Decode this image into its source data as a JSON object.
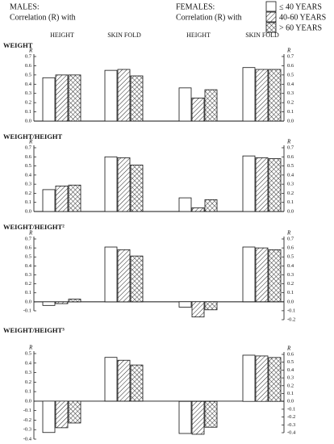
{
  "header": {
    "males": "MALES:",
    "males_sub": "Correlation (R) with",
    "females": "FEMALES:",
    "females_sub": "Correlation (R) with"
  },
  "legend": [
    {
      "name": "≤ 40 YEARS",
      "pattern": "none"
    },
    {
      "name": "40-60 YEARS",
      "pattern": "hatch"
    },
    {
      "name": "> 60 YEARS",
      "pattern": "cross"
    }
  ],
  "categories": {
    "males": [
      "HEIGHT",
      "SKIN FOLD"
    ],
    "females": [
      "HEIGHT",
      "SKIN FOLD"
    ]
  },
  "axis_label": "R",
  "chart_data": [
    {
      "type": "bar",
      "title": "WEIGHT",
      "ylim": [
        0,
        0.7
      ],
      "yticks": [
        {
          "value": 0,
          "label": "0.0"
        },
        0.1,
        0.2,
        0.3,
        0.4,
        0.5,
        0.6,
        0.7
      ],
      "y2lim": [
        0,
        0.7
      ],
      "y2ticks": [
        {
          "value": 0,
          "label": "0.0"
        },
        0.1,
        0.2,
        0.3,
        0.4,
        0.5,
        0.6,
        0.7
      ],
      "males": {
        "series": [
          {
            "values": [
              0.47,
              0.55
            ]
          },
          {
            "values": [
              0.5,
              0.56
            ]
          },
          {
            "values": [
              0.5,
              0.49
            ]
          }
        ]
      },
      "females": {
        "axis": "y2",
        "series": [
          {
            "values": [
              0.36,
              0.58
            ]
          },
          {
            "values": [
              0.25,
              0.56
            ]
          },
          {
            "values": [
              0.34,
              0.56
            ]
          }
        ]
      }
    },
    {
      "type": "bar",
      "title": "WEIGHT/HEIGHT",
      "ylim": [
        0,
        0.7
      ],
      "yticks": [
        {
          "value": 0,
          "label": "0.0"
        },
        0.1,
        0.2,
        0.3,
        0.4,
        0.5,
        0.6,
        0.7
      ],
      "y2lim": [
        0,
        0.7
      ],
      "y2ticks": [
        {
          "value": 0,
          "label": "0.0"
        },
        0.1,
        0.2,
        0.3,
        0.4,
        0.5,
        0.6,
        0.7
      ],
      "males": {
        "series": [
          {
            "values": [
              0.24,
              0.6
            ]
          },
          {
            "values": [
              0.28,
              0.59
            ]
          },
          {
            "values": [
              0.29,
              0.51
            ]
          }
        ]
      },
      "females": {
        "axis": "y2",
        "series": [
          {
            "values": [
              0.15,
              0.61
            ]
          },
          {
            "values": [
              0.04,
              0.59
            ]
          },
          {
            "values": [
              0.13,
              0.58
            ]
          }
        ]
      }
    },
    {
      "type": "bar",
      "title": "WEIGHT/HEIGHT²",
      "ylim": [
        -0.1,
        0.7
      ],
      "yticks": [
        -0.1,
        {
          "value": 0,
          "label": "0.0"
        },
        0.1,
        0.2,
        0.3,
        0.4,
        0.5,
        0.6,
        0.7
      ],
      "y2lim": [
        -0.2,
        0.7
      ],
      "y2ticks": [
        -0.2,
        -0.1,
        {
          "value": 0,
          "label": "0.0"
        },
        0.1,
        0.2,
        0.3,
        0.4,
        0.5,
        0.6,
        0.7
      ],
      "males": {
        "series": [
          {
            "values": [
              -0.04,
              0.61
            ]
          },
          {
            "values": [
              -0.02,
              0.58
            ]
          },
          {
            "values": [
              0.03,
              0.51
            ]
          }
        ]
      },
      "females": {
        "axis": "y2",
        "series": [
          {
            "values": [
              -0.06,
              0.61
            ]
          },
          {
            "values": [
              -0.17,
              0.6
            ]
          },
          {
            "values": [
              -0.09,
              0.58
            ]
          }
        ]
      }
    },
    {
      "type": "bar",
      "title": "WEIGHT/HEIGHT³",
      "ylim": [
        -0.4,
        0.5
      ],
      "yticks": [
        -0.4,
        -0.3,
        -0.2,
        -0.1,
        {
          "value": 0,
          "label": "0.0"
        },
        0.1,
        0.2,
        0.3,
        0.4,
        0.5
      ],
      "y2lim": [
        -0.4,
        0.6
      ],
      "y2ticks": [
        -0.4,
        -0.3,
        -0.2,
        -0.1,
        {
          "value": 0,
          "label": "0.0"
        },
        0.1,
        0.2,
        0.3,
        0.4,
        0.5,
        0.6
      ],
      "males": {
        "series": [
          {
            "values": [
              -0.33,
              0.46
            ]
          },
          {
            "values": [
              -0.28,
              0.43
            ]
          },
          {
            "values": [
              -0.23,
              0.38
            ]
          }
        ]
      },
      "females": {
        "axis": "y2",
        "series": [
          {
            "values": [
              -0.41,
              0.59
            ]
          },
          {
            "values": [
              -0.42,
              0.58
            ]
          },
          {
            "values": [
              -0.33,
              0.56
            ]
          }
        ]
      }
    }
  ]
}
